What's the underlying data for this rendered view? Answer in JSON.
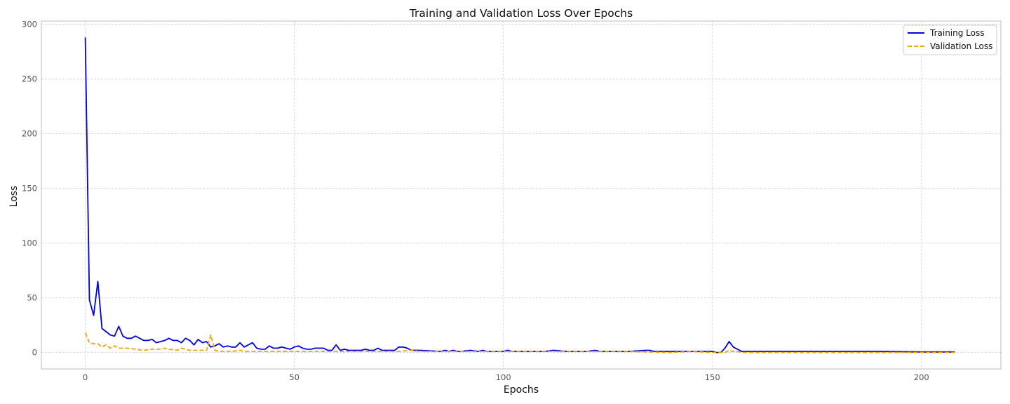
{
  "chart_data": {
    "type": "line",
    "title": "Training and Validation Loss Over Epochs",
    "xlabel": "Epochs",
    "ylabel": "Loss",
    "xlim": [
      -10.5,
      219
    ],
    "ylim": [
      -15,
      303
    ],
    "xticks": [
      0,
      50,
      100,
      150,
      200
    ],
    "yticks": [
      0,
      50,
      100,
      150,
      200,
      250,
      300
    ],
    "grid": true,
    "legend_position": "top-right",
    "series": [
      {
        "name": "Training Loss",
        "color": "#0000dd",
        "style": "solid",
        "x": [
          0,
          1,
          2,
          3,
          4,
          5,
          6,
          7,
          8,
          9,
          10,
          11,
          12,
          13,
          14,
          15,
          16,
          17,
          18,
          19,
          20,
          21,
          22,
          23,
          24,
          25,
          26,
          27,
          28,
          29,
          30,
          31,
          32,
          33,
          34,
          35,
          36,
          37,
          38,
          39,
          40,
          41,
          42,
          43,
          44,
          45,
          46,
          47,
          48,
          49,
          50,
          51,
          52,
          53,
          54,
          55,
          56,
          57,
          58,
          59,
          60,
          61,
          62,
          63,
          64,
          65,
          66,
          67,
          68,
          69,
          70,
          71,
          72,
          73,
          74,
          75,
          76,
          77,
          78,
          80,
          85,
          86,
          87,
          88,
          89,
          90,
          92,
          94,
          95,
          96,
          100,
          101,
          102,
          103,
          105,
          110,
          112,
          115,
          117,
          120,
          122,
          123,
          125,
          130,
          134,
          135,
          136,
          140,
          145,
          150,
          151,
          152,
          153,
          154,
          155,
          156,
          157,
          158,
          160,
          170,
          180,
          190,
          200,
          208
        ],
        "y": [
          288,
          48,
          34,
          65,
          22,
          19,
          16,
          15,
          24,
          15,
          13,
          13,
          15,
          13,
          11,
          11,
          12,
          9,
          10,
          11,
          13,
          11,
          11,
          9,
          13,
          11,
          7,
          12,
          9,
          10,
          5,
          6,
          8,
          5,
          6,
          5,
          5,
          9,
          5,
          7,
          9,
          4,
          3,
          3,
          6,
          4,
          4,
          5,
          4,
          3,
          5,
          6,
          4,
          3,
          3,
          4,
          4,
          4,
          2,
          2,
          7,
          2,
          3,
          2,
          2,
          2,
          2,
          3,
          2,
          2,
          4,
          2,
          2,
          2,
          2,
          5,
          5,
          4,
          2,
          2,
          1,
          2,
          1,
          2,
          1,
          1,
          2,
          1,
          2,
          1,
          1,
          2,
          1,
          1,
          1,
          1,
          2,
          1,
          1,
          1,
          2,
          1,
          1,
          1,
          2,
          2,
          1,
          1,
          1,
          1,
          0,
          0,
          4,
          10,
          5,
          3,
          1,
          1,
          1,
          1,
          1,
          1,
          0.5,
          0.5
        ]
      },
      {
        "name": "Validation Loss",
        "color": "#f0a500",
        "style": "dashed",
        "x": [
          0,
          1,
          2,
          3,
          4,
          5,
          6,
          7,
          8,
          9,
          10,
          12,
          14,
          16,
          18,
          19,
          20,
          22,
          23,
          24,
          25,
          26,
          27,
          28,
          29,
          30,
          31,
          32,
          33,
          35,
          37,
          38,
          40,
          45,
          50,
          55,
          60,
          70,
          75,
          78,
          80,
          90,
          100,
          110,
          120,
          130,
          140,
          145,
          150,
          153,
          154,
          155,
          156,
          157,
          160,
          170,
          180,
          190,
          200,
          208
        ],
        "y": [
          18,
          9,
          8,
          8,
          5,
          7,
          4,
          6,
          4,
          4,
          4,
          3,
          2,
          3,
          3,
          4,
          3,
          2,
          4,
          3,
          2,
          2,
          2,
          2,
          2,
          16,
          2,
          1,
          1,
          1,
          2,
          1,
          1,
          1,
          1,
          1,
          1,
          1,
          1,
          2,
          1,
          1,
          1,
          1,
          1,
          1,
          0,
          1,
          0,
          0,
          2,
          1,
          1,
          0,
          0,
          0,
          0,
          0,
          0,
          0
        ]
      }
    ]
  }
}
